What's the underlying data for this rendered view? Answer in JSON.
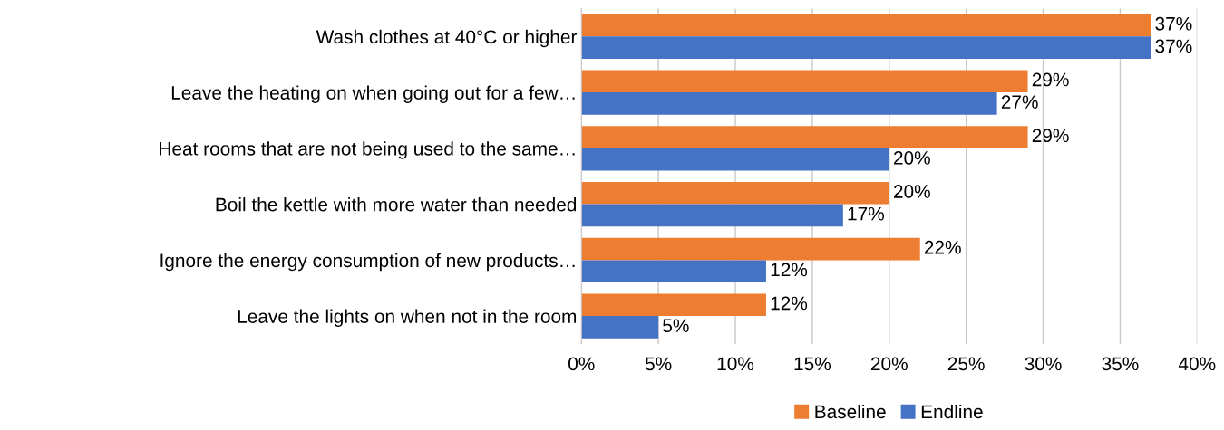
{
  "chart_data": {
    "type": "bar",
    "orientation": "horizontal",
    "categories": [
      "Wash clothes at 40°C or higher",
      "Leave the heating on when going out for a few…",
      "Heat rooms that are not being used to the same…",
      "Boil the kettle with more water than needed",
      "Ignore the energy consumption of new products…",
      "Leave the lights on when not in the room"
    ],
    "series": [
      {
        "name": "Baseline",
        "color": "#ed7d31",
        "values": [
          37,
          29,
          29,
          20,
          22,
          12
        ],
        "value_labels": [
          "37%",
          "29%",
          "29%",
          "20%",
          "22%",
          "12%"
        ]
      },
      {
        "name": "Endline",
        "color": "#4472c4",
        "values": [
          37,
          27,
          20,
          17,
          12,
          5
        ],
        "value_labels": [
          "37%",
          "27%",
          "20%",
          "17%",
          "12%",
          "5%"
        ]
      }
    ],
    "xlim": [
      0,
      40
    ],
    "xticks": [
      {
        "value": 0,
        "label": "0%"
      },
      {
        "value": 5,
        "label": "5%"
      },
      {
        "value": 10,
        "label": "10%"
      },
      {
        "value": 15,
        "label": "15%"
      },
      {
        "value": 20,
        "label": "20%"
      },
      {
        "value": 25,
        "label": "25%"
      },
      {
        "value": 30,
        "label": "30%"
      },
      {
        "value": 35,
        "label": "35%"
      },
      {
        "value": 40,
        "label": "40%"
      }
    ],
    "grid": "x",
    "legend": "bottom"
  }
}
